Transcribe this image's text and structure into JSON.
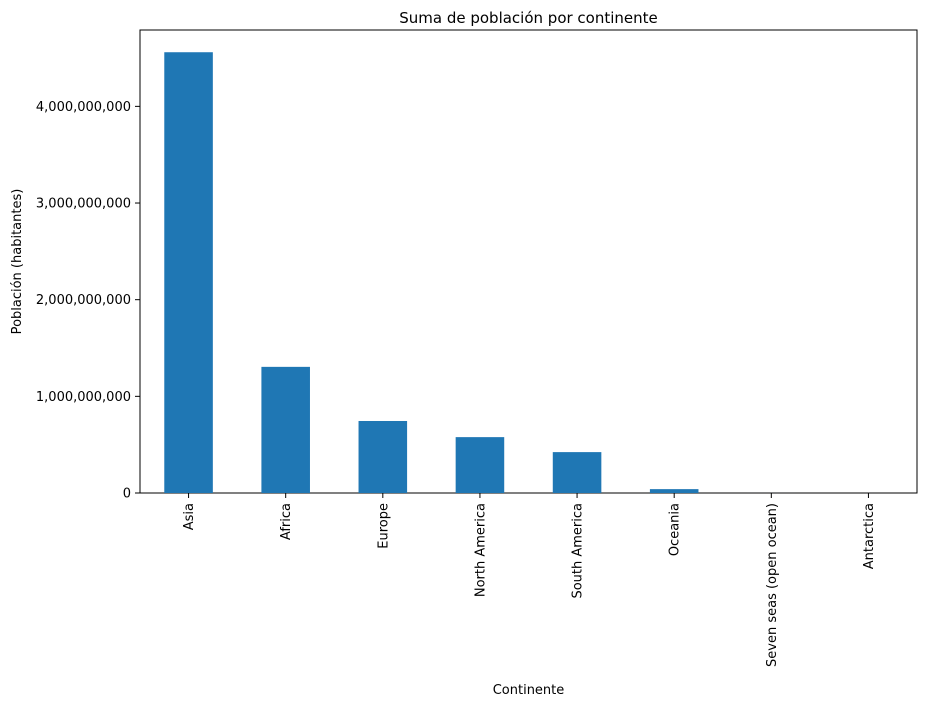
{
  "chart_data": {
    "type": "bar",
    "title": "Suma de población por continente",
    "xlabel": "Continente",
    "ylabel": "Población (habitantes)",
    "categories": [
      "Asia",
      "Africa",
      "Europe",
      "North America",
      "South America",
      "Oceania",
      "Seven seas (open ocean)",
      "Antarctica"
    ],
    "values": [
      4560000000,
      1305000000,
      745000000,
      578000000,
      423000000,
      40000000,
      140000,
      4000
    ],
    "ylim": [
      0,
      4790000000
    ],
    "yticks": [
      0,
      1000000000,
      2000000000,
      3000000000,
      4000000000
    ],
    "ytick_labels": [
      "0",
      "1,000,000,000",
      "2,000,000,000",
      "3,000,000,000",
      "4,000,000,000"
    ],
    "bar_color": "#1f77b4",
    "grid": false,
    "legend": "none"
  }
}
